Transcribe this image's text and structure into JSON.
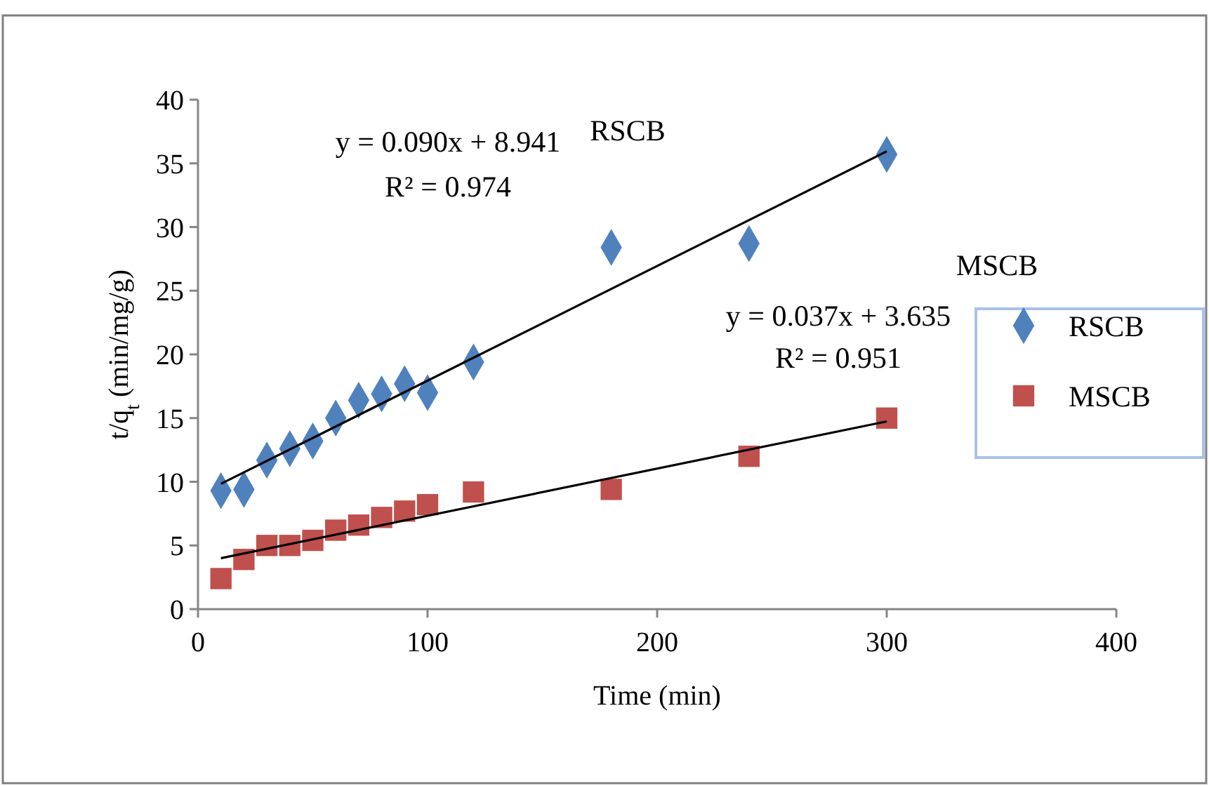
{
  "chart_data": {
    "type": "scatter",
    "xlabel": "Time (min)",
    "ylabel": "t/q$_{t}$  (min/mg/g)",
    "xlim": [
      0,
      400
    ],
    "xticks": [
      0,
      100,
      200,
      300,
      400
    ],
    "ylim": [
      0,
      40
    ],
    "yticks": [
      0,
      5,
      10,
      15,
      20,
      25,
      30,
      35,
      40
    ],
    "grid": false,
    "legend": "right",
    "series": [
      {
        "name": "RSCB",
        "color": "#4f81bd",
        "marker": "diamond",
        "x": [
          10,
          20,
          30,
          40,
          50,
          60,
          70,
          80,
          90,
          100,
          120,
          180,
          240,
          300
        ],
        "values": [
          9.3,
          9.4,
          11.7,
          12.6,
          13.2,
          15.0,
          16.4,
          16.9,
          17.7,
          17.0,
          19.4,
          28.4,
          28.7,
          35.7
        ]
      },
      {
        "name": "MSCB",
        "color": "#c0504d",
        "marker": "square",
        "x": [
          10,
          20,
          30,
          40,
          50,
          60,
          70,
          80,
          90,
          100,
          120,
          180,
          240,
          300
        ],
        "values": [
          2.4,
          3.9,
          5.0,
          5.0,
          5.4,
          6.2,
          6.6,
          7.2,
          7.7,
          8.2,
          9.2,
          9.4,
          12.0,
          15.0
        ]
      },
      {
        "type": "line",
        "color": "#000000",
        "line_style": "solid",
        "x": [
          10,
          300
        ],
        "values": [
          9.84,
          35.94
        ]
      },
      {
        "type": "line",
        "color": "#000000",
        "line_style": "solid",
        "x": [
          10,
          300
        ],
        "values": [
          4.0,
          14.74
        ]
      }
    ],
    "annotations": [
      "RSCB",
      "y = 0.090x + 8.941",
      "R² = 0.974",
      "MSCB",
      "y = 0.037x + 3.635",
      "R² = 0.951"
    ]
  }
}
